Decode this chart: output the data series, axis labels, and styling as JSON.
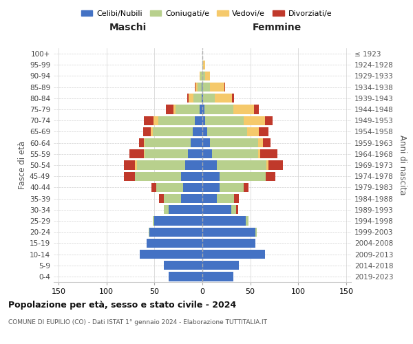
{
  "age_groups": [
    "0-4",
    "5-9",
    "10-14",
    "15-19",
    "20-24",
    "25-29",
    "30-34",
    "35-39",
    "40-44",
    "45-49",
    "50-54",
    "55-59",
    "60-64",
    "65-69",
    "70-74",
    "75-79",
    "80-84",
    "85-89",
    "90-94",
    "95-99",
    "100+"
  ],
  "birth_years": [
    "2019-2023",
    "2014-2018",
    "2009-2013",
    "2004-2008",
    "1999-2003",
    "1994-1998",
    "1989-1993",
    "1984-1988",
    "1979-1983",
    "1974-1978",
    "1969-1973",
    "1964-1968",
    "1959-1963",
    "1954-1958",
    "1949-1953",
    "1944-1948",
    "1939-1943",
    "1934-1938",
    "1929-1933",
    "1924-1928",
    "≤ 1923"
  ],
  "male": {
    "celibi": [
      35,
      40,
      65,
      58,
      55,
      50,
      35,
      22,
      20,
      22,
      18,
      15,
      12,
      10,
      8,
      3,
      1,
      1,
      0,
      0,
      0
    ],
    "coniugati": [
      0,
      0,
      0,
      0,
      1,
      2,
      5,
      18,
      28,
      48,
      50,
      45,
      48,
      42,
      38,
      25,
      8,
      4,
      2,
      0,
      0
    ],
    "vedovi": [
      0,
      0,
      0,
      0,
      0,
      0,
      0,
      0,
      0,
      0,
      2,
      1,
      1,
      2,
      5,
      2,
      5,
      2,
      1,
      0,
      0
    ],
    "divorziati": [
      0,
      0,
      0,
      0,
      0,
      0,
      0,
      5,
      5,
      12,
      12,
      15,
      5,
      8,
      10,
      8,
      2,
      1,
      0,
      0,
      0
    ]
  },
  "female": {
    "nubili": [
      32,
      38,
      65,
      55,
      55,
      45,
      30,
      15,
      18,
      18,
      15,
      10,
      8,
      5,
      3,
      2,
      1,
      0,
      0,
      0,
      0
    ],
    "coniugate": [
      0,
      0,
      0,
      0,
      2,
      3,
      5,
      18,
      25,
      48,
      52,
      48,
      50,
      42,
      40,
      30,
      12,
      8,
      3,
      1,
      0
    ],
    "vedove": [
      0,
      0,
      0,
      0,
      0,
      0,
      0,
      0,
      0,
      0,
      2,
      2,
      5,
      12,
      22,
      22,
      18,
      15,
      5,
      2,
      0
    ],
    "divorziate": [
      0,
      0,
      0,
      0,
      0,
      0,
      2,
      5,
      5,
      10,
      15,
      18,
      8,
      10,
      8,
      5,
      2,
      1,
      0,
      0,
      0
    ]
  },
  "colors": {
    "celibi": "#4472c4",
    "coniugati": "#b8d08d",
    "vedovi": "#f5c96b",
    "divorziati": "#c0392b"
  },
  "xlim": 155,
  "title_main": "Popolazione per età, sesso e stato civile - 2024",
  "title_sub": "COMUNE DI EUPILIO (CO) - Dati ISTAT 1° gennaio 2024 - Elaborazione TUTTITALIA.IT",
  "label_maschi": "Maschi",
  "label_femmine": "Femmine",
  "label_fasce": "Fasce di età",
  "label_anni": "Anni di nascita",
  "legend_celibi": "Celibi/Nubili",
  "legend_coniugati": "Coniugati/e",
  "legend_vedovi": "Vedovi/e",
  "legend_divorziati": "Divorziati/e"
}
